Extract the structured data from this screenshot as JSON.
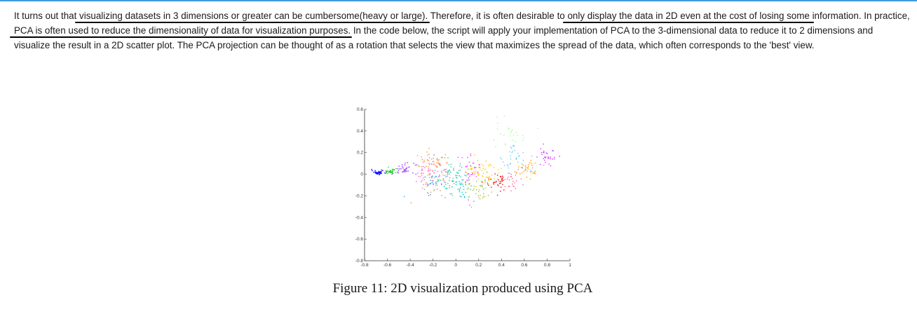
{
  "paragraph": {
    "t1": "It turns out that ",
    "u1": "visualizing datasets in 3 dimensions or greater can be cumbersome(heavy or large)",
    "t2": ". Therefore, it is often desirable to ",
    "u2": "only display the data in 2D even at the cost of losing some",
    "t3": " information. In practice, ",
    "u3": "PCA is often used to reduce the dimensionality of data for visualization purposes",
    "t4": ". In the code below, the script will apply your implementation of PCA to the 3-dimensional data to reduce it to 2 dimensions and visualize the result in a 2D scatter plot. The PCA projection can be thought of as a rotation that selects the view that maximizes the spread of the data, which often corresponds to the 'best' view."
  },
  "caption": "Figure 11: 2D visualization produced using PCA",
  "chart_data": {
    "type": "scatter",
    "title": "",
    "xlabel": "",
    "ylabel": "",
    "xlim": [
      -0.8,
      1
    ],
    "ylim": [
      -0.8,
      0.6
    ],
    "x_ticks": [
      "-0.8",
      "-0.6",
      "-0.4",
      "-0.2",
      "0",
      "0.2",
      "0.4",
      "0.6",
      "0.8",
      "1"
    ],
    "y_ticks": [
      "0.6",
      "0.4",
      "0.2",
      "0",
      "-0.2",
      "-0.4",
      "-0.6",
      "-0.8"
    ],
    "grid": false,
    "legend": "none",
    "clusters": [
      {
        "color": "#0000ff",
        "cx": -0.68,
        "cy": 0.02,
        "sx": 0.03,
        "sy": 0.01,
        "n": 40
      },
      {
        "color": "#22cc22",
        "cx": -0.58,
        "cy": 0.03,
        "sx": 0.03,
        "sy": 0.012,
        "n": 35
      },
      {
        "color": "#9933ff",
        "cx": -0.47,
        "cy": 0.05,
        "sx": 0.05,
        "sy": 0.03,
        "n": 35
      },
      {
        "color": "#ff66cc",
        "cx": -0.22,
        "cy": 0.04,
        "sx": 0.09,
        "sy": 0.08,
        "n": 60
      },
      {
        "color": "#ff9933",
        "cx": -0.2,
        "cy": 0.12,
        "sx": 0.07,
        "sy": 0.05,
        "n": 35
      },
      {
        "color": "#cc9966",
        "cx": -0.18,
        "cy": -0.05,
        "sx": 0.08,
        "sy": 0.06,
        "n": 35
      },
      {
        "color": "#3399ff",
        "cx": -0.2,
        "cy": -0.08,
        "sx": 0.06,
        "sy": 0.05,
        "n": 25
      },
      {
        "color": "#33cc99",
        "cx": -0.05,
        "cy": 0.0,
        "sx": 0.08,
        "sy": 0.08,
        "n": 55
      },
      {
        "color": "#00cccc",
        "cx": 0.05,
        "cy": -0.12,
        "sx": 0.06,
        "sy": 0.07,
        "n": 45
      },
      {
        "color": "#ff33ff",
        "cx": 0.12,
        "cy": 0.05,
        "sx": 0.06,
        "sy": 0.07,
        "n": 35
      },
      {
        "color": "#ffcc00",
        "cx": 0.25,
        "cy": 0.02,
        "sx": 0.07,
        "sy": 0.07,
        "n": 55
      },
      {
        "color": "#99cc33",
        "cx": 0.2,
        "cy": -0.15,
        "sx": 0.07,
        "sy": 0.07,
        "n": 35
      },
      {
        "color": "#ff0000",
        "cx": 0.35,
        "cy": -0.07,
        "sx": 0.05,
        "sy": 0.05,
        "n": 35
      },
      {
        "color": "#66ccff",
        "cx": 0.5,
        "cy": 0.17,
        "sx": 0.07,
        "sy": 0.08,
        "n": 35
      },
      {
        "color": "#ff6699",
        "cx": 0.5,
        "cy": -0.05,
        "sx": 0.05,
        "sy": 0.05,
        "n": 25
      },
      {
        "color": "#ff9900",
        "cx": 0.63,
        "cy": 0.05,
        "sx": 0.05,
        "sy": 0.04,
        "n": 35
      },
      {
        "color": "#cc33ff",
        "cx": 0.8,
        "cy": 0.17,
        "sx": 0.04,
        "sy": 0.04,
        "n": 30
      },
      {
        "color": "#99ff99",
        "cx": 0.45,
        "cy": 0.4,
        "sx": 0.1,
        "sy": 0.06,
        "n": 25
      }
    ]
  }
}
